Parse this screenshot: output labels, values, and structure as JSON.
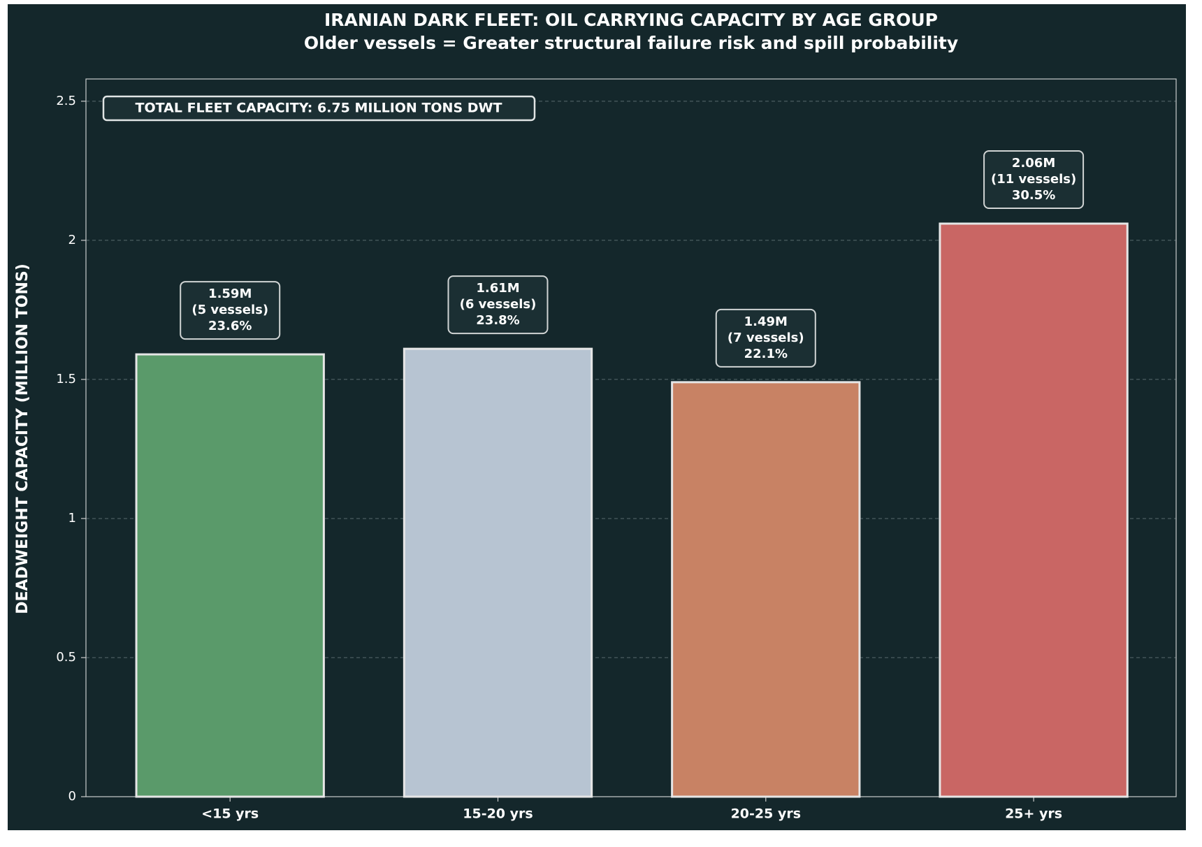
{
  "chart_data": {
    "type": "bar",
    "title": "IRANIAN DARK FLEET: OIL CARRYING CAPACITY BY AGE GROUP",
    "subtitle": "Older vessels = Greater structural failure risk and spill probability",
    "y_label": "DEADWEIGHT CAPACITY (MILLION TONS)",
    "annotation": "TOTAL FLEET CAPACITY: 6.75 MILLION TONS DWT",
    "categories": [
      "<15 yrs",
      "15-20 yrs",
      "20-25 yrs",
      "25+ yrs"
    ],
    "values": [
      1.59,
      1.61,
      1.49,
      2.06
    ],
    "value_labels": [
      "1.59M",
      "1.61M",
      "1.49M",
      "2.06M"
    ],
    "vessel_labels": [
      "(5 vessels)",
      "(6 vessels)",
      "(7 vessels)",
      "(11 vessels)"
    ],
    "share_labels": [
      "23.6%",
      "23.8%",
      "22.1%",
      "30.5%"
    ],
    "colors": [
      "#5a9a6a",
      "#b7c4d2",
      "#c88264",
      "#c96664"
    ],
    "ylim": [
      0,
      2.58
    ],
    "yticks": [
      0.0,
      0.5,
      1.0,
      1.5,
      2.0,
      2.5
    ],
    "grid": true
  }
}
